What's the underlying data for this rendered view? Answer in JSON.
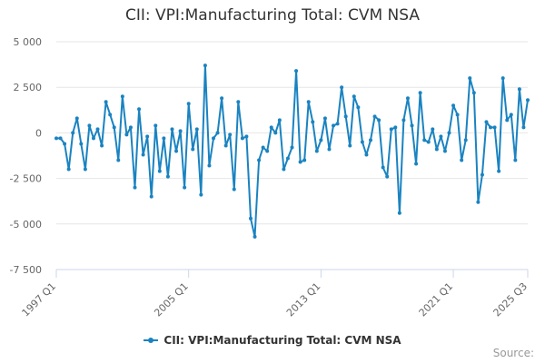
{
  "title": "CII: VPI:Manufacturing Total: CVM NSA",
  "credits": "Source:",
  "colors": {
    "series": "#1a83c1",
    "grid": "#e6e6e6",
    "axis": "#ccd6eb",
    "text": "#333333",
    "tick": "#666666"
  },
  "chart_data": {
    "type": "line",
    "title": "CII: VPI:Manufacturing Total: CVM NSA",
    "xlabel": "",
    "ylabel": "",
    "x_tick_labels": [
      "1997 Q1",
      "2005 Q1",
      "2013 Q1",
      "2021 Q1",
      "2025 Q3"
    ],
    "y_ticks": [
      5000,
      2500,
      0,
      -2500,
      -5000,
      -7500
    ],
    "y_tick_labels": [
      "5 000",
      "2 500",
      "0",
      "-2 500",
      "-5 000",
      "-7 500"
    ],
    "ylim": [
      -7500,
      5000
    ],
    "xlim": [
      "1997 Q1",
      "2025 Q3"
    ],
    "grid": true,
    "legend": "bottom-center",
    "series": [
      {
        "name": "CII: VPI:Manufacturing Total: CVM NSA",
        "x_start": "1997 Q1",
        "frequency": "quarterly",
        "values": [
          -300,
          -300,
          -600,
          -2000,
          0,
          800,
          -600,
          -2000,
          400,
          -300,
          200,
          -700,
          1700,
          1000,
          300,
          -1500,
          2000,
          -100,
          300,
          -3000,
          1300,
          -1200,
          -200,
          -3500,
          400,
          -2100,
          -300,
          -2400,
          200,
          -1000,
          100,
          -3000,
          1600,
          -900,
          200,
          -3400,
          3700,
          -1800,
          -300,
          0,
          1900,
          -700,
          -100,
          -3100,
          1700,
          -300,
          -200,
          -4700,
          -5700,
          -1500,
          -800,
          -1000,
          300,
          0,
          700,
          -2000,
          -1400,
          -800,
          3400,
          -1600,
          -1500,
          1700,
          600,
          -1000,
          -400,
          800,
          -900,
          400,
          500,
          2500,
          900,
          -700,
          2000,
          1400,
          -500,
          -1200,
          -400,
          900,
          700,
          -1900,
          -2400,
          200,
          300,
          -4400,
          700,
          1900,
          400,
          -1700,
          2200,
          -400,
          -500,
          200,
          -900,
          -200,
          -1000,
          0,
          1500,
          1000,
          -1500,
          -400,
          3000,
          2200,
          -3800,
          -2300,
          600,
          300,
          300,
          -2100,
          3000,
          700,
          1000,
          -1500,
          2400,
          300,
          1800
        ]
      }
    ]
  }
}
